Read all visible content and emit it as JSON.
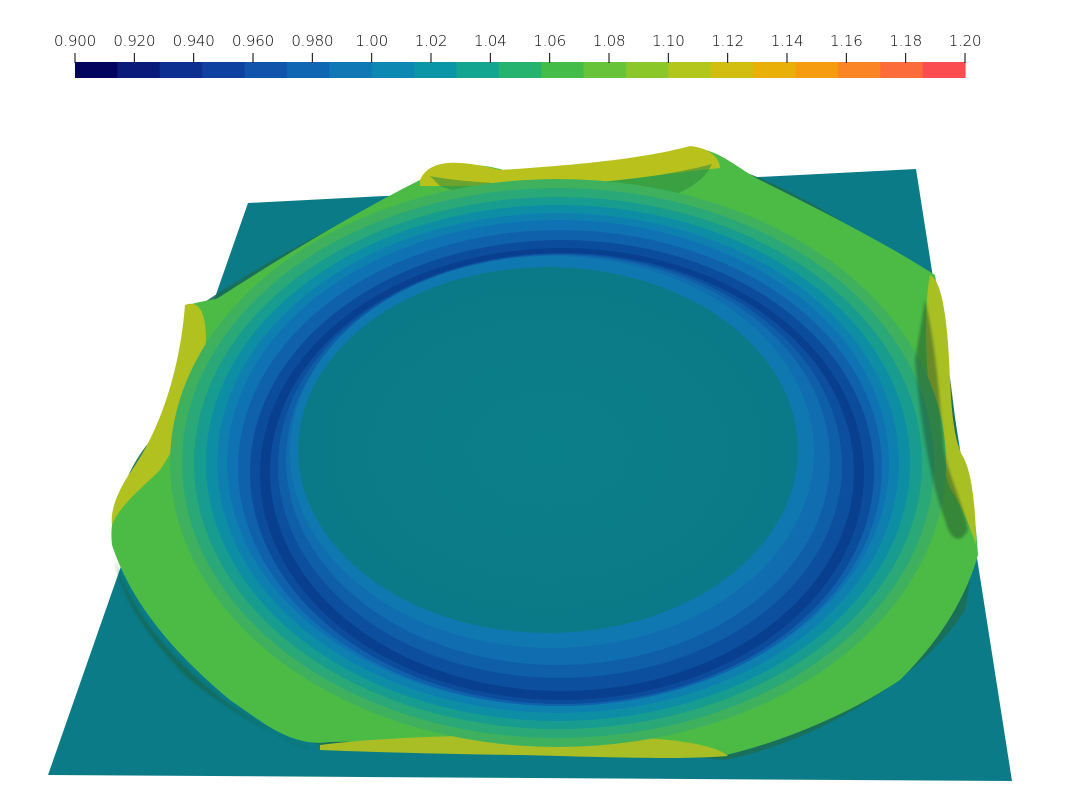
{
  "colorbar": {
    "tick_labels": [
      "0.900",
      "0.920",
      "0.940",
      "0.960",
      "0.980",
      "1.00",
      "1.02",
      "1.04",
      "1.06",
      "1.08",
      "1.10",
      "1.12",
      "1.14",
      "1.16",
      "1.18",
      "1.20"
    ],
    "range": [
      0.9,
      1.2
    ],
    "colormap": "turbo-like",
    "band_colors": [
      "#03045e",
      "#0a1a7a",
      "#0d2f8f",
      "#0f42a0",
      "#1054ab",
      "#1066b2",
      "#0f78b5",
      "#0d88b3",
      "#0b96a8",
      "#13a58f",
      "#26b36f",
      "#43bd48",
      "#66c33a",
      "#8cc72a",
      "#b2c61b",
      "#d2be10",
      "#e9b007",
      "#f59c10",
      "#fb8524",
      "#fc6c3a",
      "#fb4d4f"
    ]
  },
  "surface": {
    "background_color": "#0a7a87",
    "plateau_color": "#0b7b88",
    "trough_color": "#0b4d9c",
    "ridge_color": "#5cbf34",
    "peak_color": "#c8b81a"
  }
}
